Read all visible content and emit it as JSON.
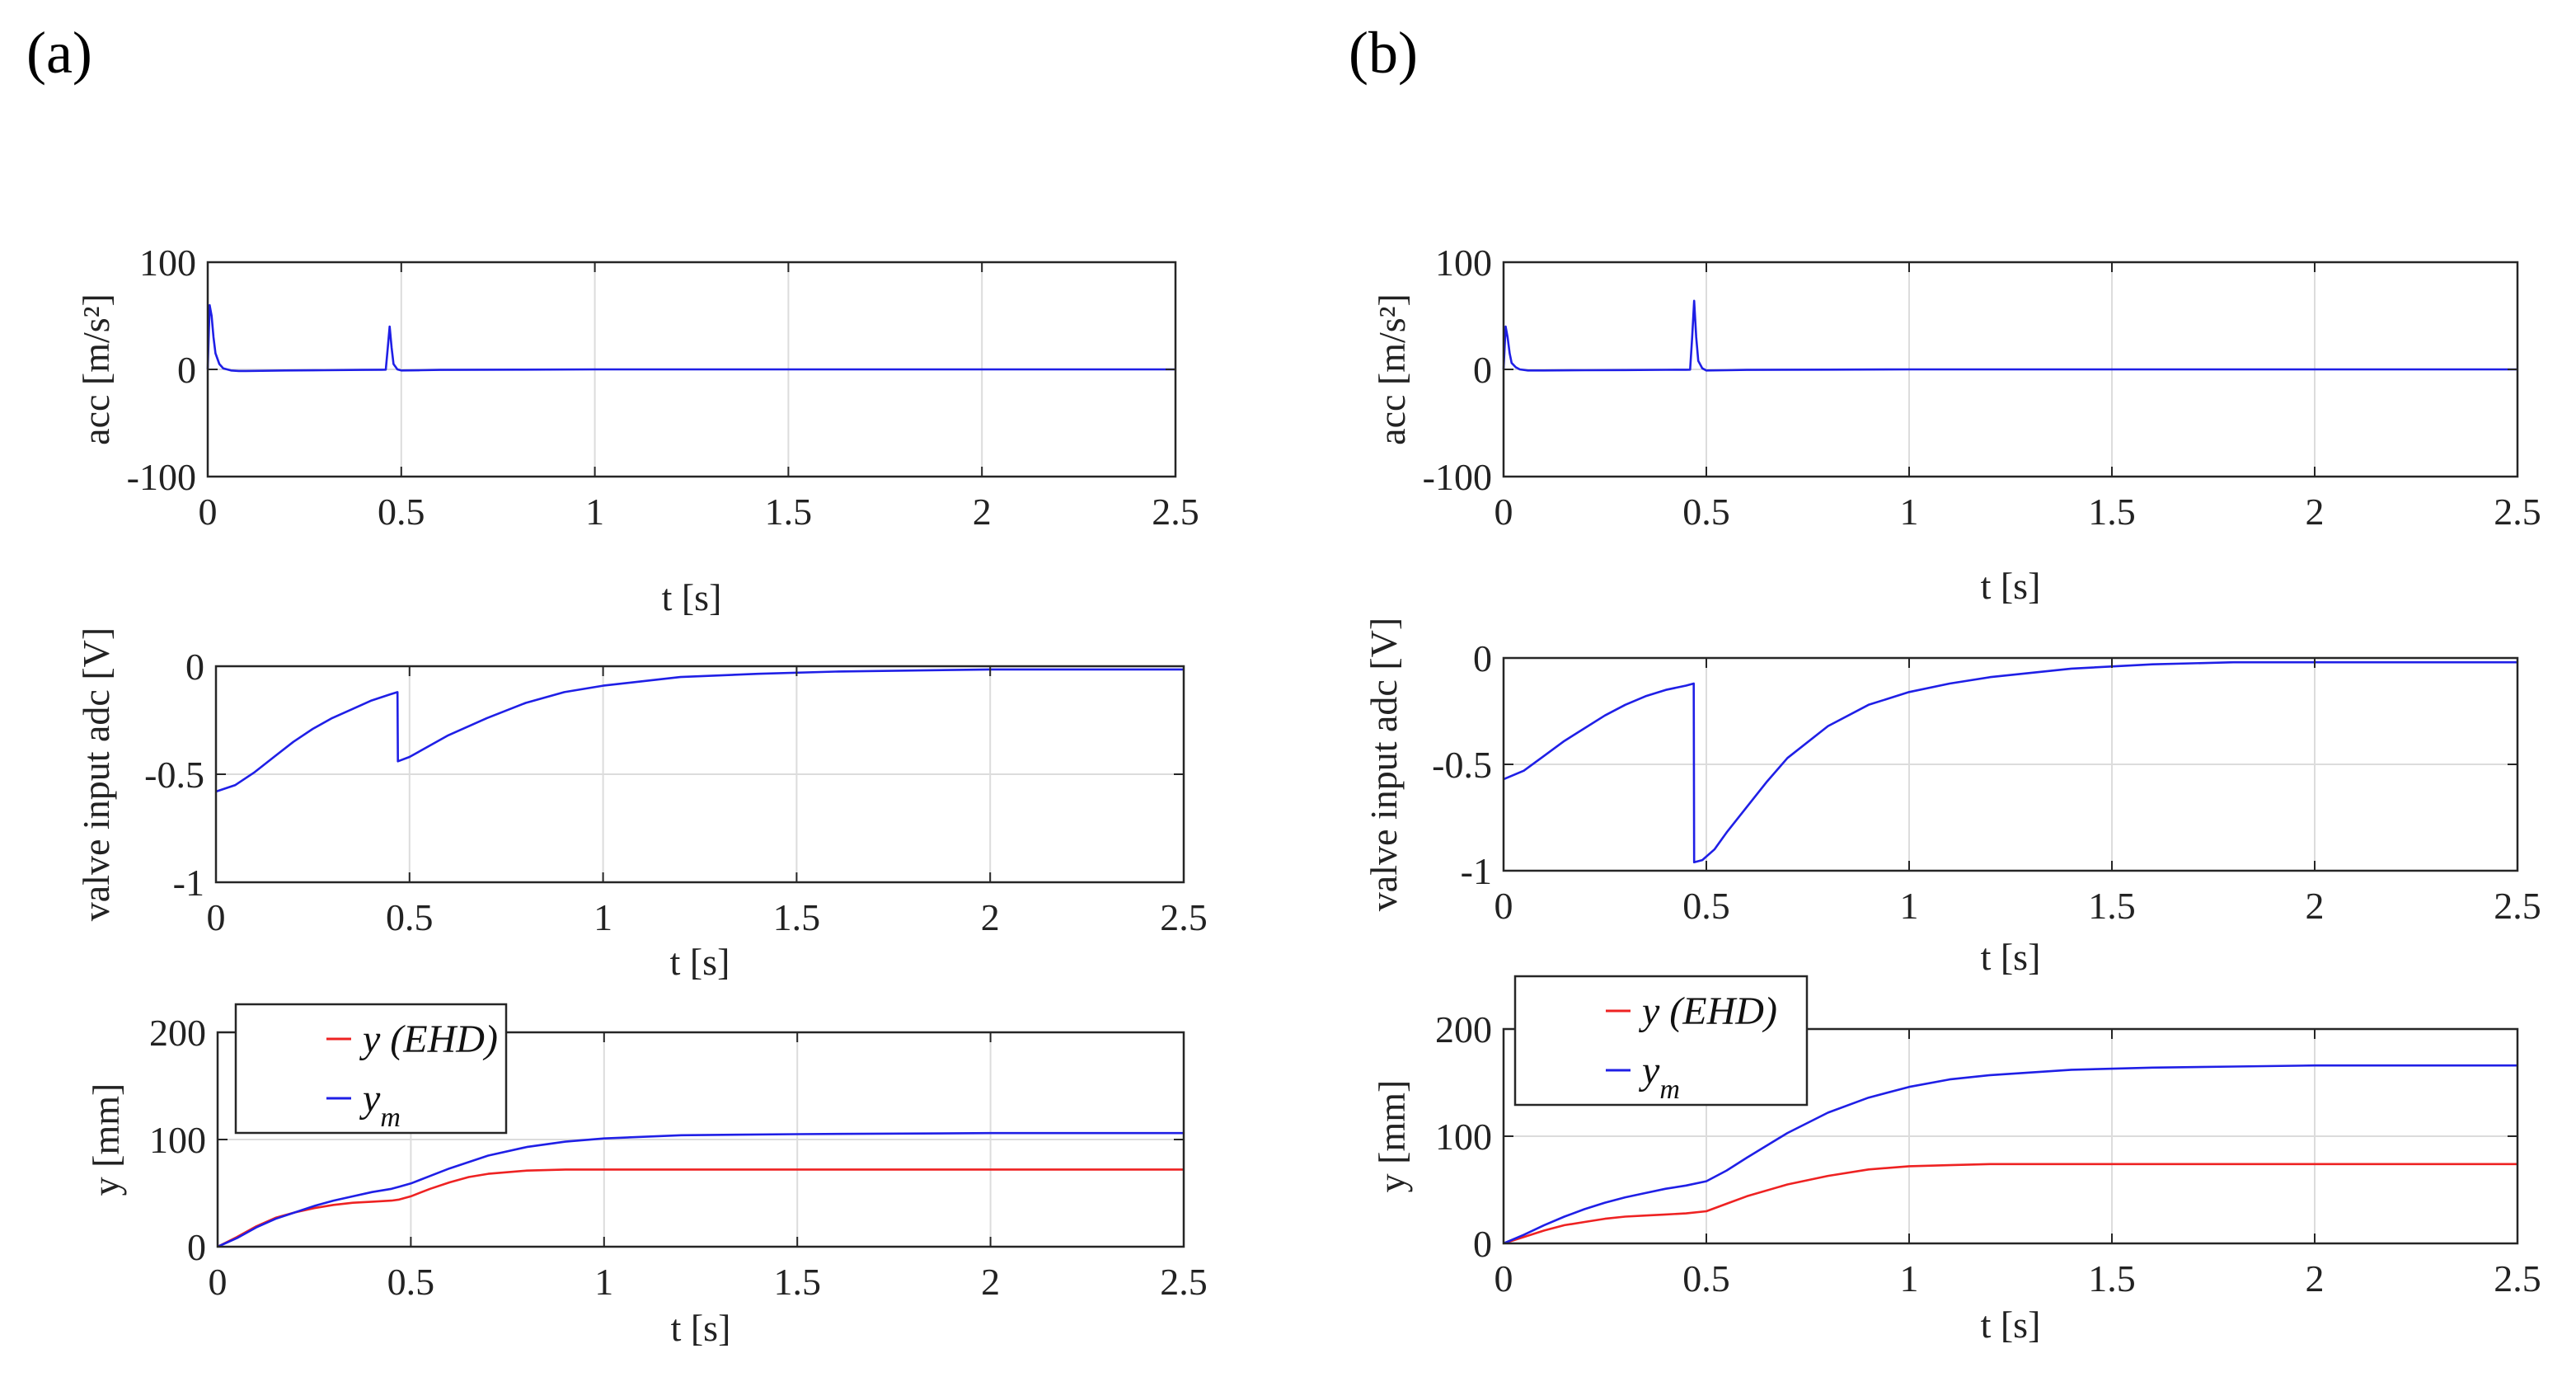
{
  "panels": [
    {
      "label": "(a)"
    },
    {
      "label": "(b)"
    }
  ],
  "chart_data": [
    {
      "panel": "(a)",
      "type": "line",
      "xlabel": "t [s]",
      "ylabel": "acc [m/s²]",
      "xlim": [
        0,
        2.5
      ],
      "ylim": [
        -100,
        100
      ],
      "xticks": [
        0,
        0.5,
        1,
        1.5,
        2,
        2.5
      ],
      "xtick_labels": [
        "0",
        "0.5",
        "1",
        "1.5",
        "2",
        "2.5"
      ],
      "yticks": [
        -100,
        0,
        100
      ],
      "ytick_labels": [
        "-100",
        "0",
        "100"
      ],
      "grid": true,
      "legend": [],
      "series": [
        {
          "name": "acc",
          "color": "#1f1fe6",
          "x": [
            0,
            0.005,
            0.01,
            0.015,
            0.02,
            0.03,
            0.04,
            0.06,
            0.08,
            0.1,
            0.2,
            0.3,
            0.4,
            0.45,
            0.46,
            0.465,
            0.47,
            0.475,
            0.48,
            0.49,
            0.5,
            0.55,
            0.6,
            0.8,
            1.0,
            1.5,
            2.0,
            2.5
          ],
          "y": [
            0,
            60,
            50,
            30,
            15,
            5,
            1,
            -1,
            -1.5,
            -1.5,
            -1,
            -0.8,
            -0.5,
            -0.3,
            -0.2,
            20,
            40,
            20,
            5,
            0,
            -1,
            -0.8,
            -0.5,
            -0.2,
            0,
            0,
            0,
            0
          ]
        }
      ]
    },
    {
      "panel": "(a)",
      "type": "line",
      "xlabel": "t [s]",
      "ylabel": "valve input adc [V]",
      "xlim": [
        0,
        2.5
      ],
      "ylim": [
        -1,
        0
      ],
      "xticks": [
        0,
        0.5,
        1,
        1.5,
        2,
        2.5
      ],
      "xtick_labels": [
        "0",
        "0.5",
        "1",
        "1.5",
        "2",
        "2.5"
      ],
      "yticks": [
        -1,
        -0.5,
        0
      ],
      "ytick_labels": [
        "-1",
        "-0.5",
        "0"
      ],
      "grid": true,
      "legend": [],
      "series": [
        {
          "name": "valve input",
          "color": "#1f1fe6",
          "x": [
            0,
            0.05,
            0.1,
            0.15,
            0.2,
            0.25,
            0.3,
            0.35,
            0.4,
            0.45,
            0.469,
            0.47,
            0.5,
            0.55,
            0.6,
            0.7,
            0.8,
            0.9,
            1.0,
            1.1,
            1.2,
            1.4,
            1.6,
            1.8,
            2.0,
            2.5
          ],
          "y": [
            -0.58,
            -0.55,
            -0.49,
            -0.42,
            -0.35,
            -0.29,
            -0.24,
            -0.2,
            -0.16,
            -0.13,
            -0.12,
            -0.44,
            -0.42,
            -0.37,
            -0.32,
            -0.24,
            -0.17,
            -0.12,
            -0.09,
            -0.07,
            -0.05,
            -0.035,
            -0.025,
            -0.02,
            -0.015,
            -0.015
          ]
        }
      ]
    },
    {
      "panel": "(a)",
      "type": "line",
      "xlabel": "t [s]",
      "ylabel": "y [mm]",
      "xlim": [
        0,
        2.5
      ],
      "ylim": [
        0,
        200
      ],
      "xticks": [
        0,
        0.5,
        1,
        1.5,
        2,
        2.5
      ],
      "xtick_labels": [
        "0",
        "0.5",
        "1",
        "1.5",
        "2",
        "2.5"
      ],
      "yticks": [
        0,
        100,
        200
      ],
      "ytick_labels": [
        "0",
        "100",
        "200"
      ],
      "grid": true,
      "legend_position": "top-left",
      "legend": [
        {
          "text": "y (EHD)",
          "color": "#ee2222"
        },
        {
          "text": "y",
          "sub": "m",
          "color": "#1f1fe6"
        }
      ],
      "series": [
        {
          "name": "y (EHD)",
          "color": "#ee2222",
          "x": [
            0,
            0.05,
            0.1,
            0.15,
            0.2,
            0.25,
            0.3,
            0.35,
            0.4,
            0.45,
            0.47,
            0.5,
            0.55,
            0.6,
            0.65,
            0.7,
            0.8,
            0.9,
            1.0,
            1.2,
            1.5,
            2.0,
            2.5
          ],
          "y": [
            0,
            9,
            19,
            27,
            32,
            36,
            39,
            41,
            42,
            43,
            44,
            47,
            54,
            60,
            65,
            68,
            71,
            72,
            72,
            72,
            72,
            72,
            72
          ]
        },
        {
          "name": "y_m",
          "color": "#1f1fe6",
          "x": [
            0,
            0.05,
            0.1,
            0.15,
            0.2,
            0.25,
            0.3,
            0.35,
            0.4,
            0.45,
            0.47,
            0.5,
            0.55,
            0.6,
            0.7,
            0.8,
            0.9,
            1.0,
            1.2,
            1.5,
            2.0,
            2.5
          ],
          "y": [
            0,
            8,
            18,
            26,
            32,
            38,
            43,
            47,
            51,
            54,
            56,
            59,
            66,
            73,
            85,
            93,
            98,
            101,
            104,
            105,
            106,
            106
          ]
        }
      ]
    },
    {
      "panel": "(b)",
      "type": "line",
      "xlabel": "t [s]",
      "ylabel": "acc [m/s²]",
      "xlim": [
        0,
        2.5
      ],
      "ylim": [
        -100,
        100
      ],
      "xticks": [
        0,
        0.5,
        1,
        1.5,
        2,
        2.5
      ],
      "xtick_labels": [
        "0",
        "0.5",
        "1",
        "1.5",
        "2",
        "2.5"
      ],
      "yticks": [
        -100,
        0,
        100
      ],
      "ytick_labels": [
        "-100",
        "0",
        "100"
      ],
      "grid": true,
      "legend": [],
      "series": [
        {
          "name": "acc",
          "color": "#1f1fe6",
          "x": [
            0,
            0.005,
            0.01,
            0.015,
            0.02,
            0.03,
            0.04,
            0.06,
            0.08,
            0.1,
            0.2,
            0.3,
            0.4,
            0.45,
            0.46,
            0.465,
            0.47,
            0.475,
            0.48,
            0.49,
            0.5,
            0.55,
            0.6,
            0.8,
            1.0,
            1.5,
            2.0,
            2.5
          ],
          "y": [
            0,
            40,
            30,
            15,
            6,
            2,
            0,
            -1,
            -1,
            -1,
            -0.8,
            -0.6,
            -0.4,
            -0.3,
            -0.2,
            30,
            64,
            30,
            8,
            1,
            -1,
            -0.8,
            -0.5,
            -0.2,
            0,
            0,
            0,
            0
          ]
        }
      ]
    },
    {
      "panel": "(b)",
      "type": "line",
      "xlabel": "t [s]",
      "ylabel": "valve input adc [V]",
      "xlim": [
        0,
        2.5
      ],
      "ylim": [
        -1,
        0
      ],
      "xticks": [
        0,
        0.5,
        1,
        1.5,
        2,
        2.5
      ],
      "xtick_labels": [
        "0",
        "0.5",
        "1",
        "1.5",
        "2",
        "2.5"
      ],
      "yticks": [
        -1,
        -0.5,
        0
      ],
      "ytick_labels": [
        "-1",
        "-0.5",
        "0"
      ],
      "grid": true,
      "legend": [],
      "series": [
        {
          "name": "valve input",
          "color": "#1f1fe6",
          "x": [
            0,
            0.05,
            0.1,
            0.15,
            0.2,
            0.25,
            0.3,
            0.35,
            0.4,
            0.45,
            0.469,
            0.47,
            0.49,
            0.52,
            0.55,
            0.6,
            0.65,
            0.7,
            0.8,
            0.9,
            1.0,
            1.1,
            1.2,
            1.4,
            1.6,
            1.8,
            2.0,
            2.5
          ],
          "y": [
            -0.57,
            -0.53,
            -0.46,
            -0.39,
            -0.33,
            -0.27,
            -0.22,
            -0.18,
            -0.15,
            -0.13,
            -0.12,
            -0.96,
            -0.95,
            -0.9,
            -0.82,
            -0.7,
            -0.58,
            -0.47,
            -0.32,
            -0.22,
            -0.16,
            -0.12,
            -0.09,
            -0.05,
            -0.03,
            -0.02,
            -0.02,
            -0.02
          ]
        }
      ]
    },
    {
      "panel": "(b)",
      "type": "line",
      "xlabel": "t [s]",
      "ylabel": "y [mm]",
      "xlim": [
        0,
        2.5
      ],
      "ylim": [
        0,
        200
      ],
      "xticks": [
        0,
        0.5,
        1,
        1.5,
        2,
        2.5
      ],
      "xtick_labels": [
        "0",
        "0.5",
        "1",
        "1.5",
        "2",
        "2.5"
      ],
      "yticks": [
        0,
        100,
        200
      ],
      "ytick_labels": [
        "0",
        "100",
        "200"
      ],
      "grid": true,
      "legend_position": "top-left",
      "legend": [
        {
          "text": "y (EHD)",
          "color": "#ee2222"
        },
        {
          "text": "y",
          "sub": "m",
          "color": "#1f1fe6"
        }
      ],
      "series": [
        {
          "name": "y (EHD)",
          "color": "#ee2222",
          "x": [
            0,
            0.05,
            0.1,
            0.15,
            0.2,
            0.25,
            0.3,
            0.35,
            0.4,
            0.45,
            0.5,
            0.55,
            0.6,
            0.7,
            0.8,
            0.9,
            1.0,
            1.1,
            1.2,
            1.5,
            2.0,
            2.5
          ],
          "y": [
            0,
            6,
            12,
            17,
            20,
            23,
            25,
            26,
            27,
            28,
            30,
            37,
            44,
            55,
            63,
            69,
            72,
            73,
            74,
            74,
            74,
            74
          ]
        },
        {
          "name": "y_m",
          "color": "#1f1fe6",
          "x": [
            0,
            0.05,
            0.1,
            0.15,
            0.2,
            0.25,
            0.3,
            0.35,
            0.4,
            0.45,
            0.5,
            0.55,
            0.6,
            0.7,
            0.8,
            0.9,
            1.0,
            1.1,
            1.2,
            1.4,
            1.6,
            1.8,
            2.0,
            2.5
          ],
          "y": [
            0,
            8,
            17,
            25,
            32,
            38,
            43,
            47,
            51,
            54,
            58,
            68,
            80,
            103,
            122,
            136,
            146,
            153,
            157,
            162,
            164,
            165,
            166,
            166
          ]
        }
      ]
    }
  ]
}
